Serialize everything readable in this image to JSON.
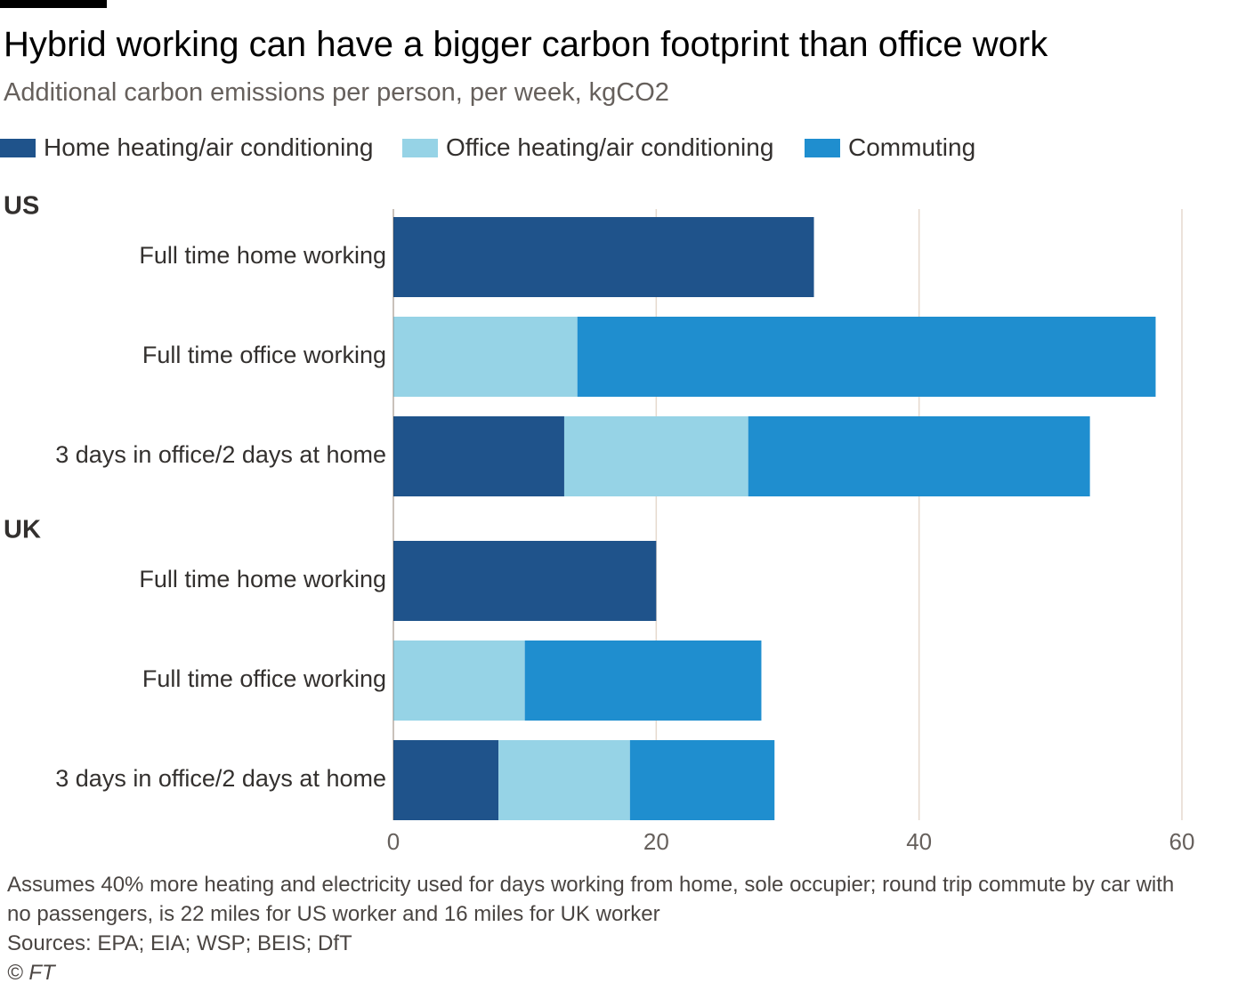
{
  "header": {
    "title": "Hybrid working can have a bigger carbon footprint than office work",
    "subtitle": "Additional carbon emissions per person, per week, kgCO2"
  },
  "legend": [
    {
      "label": "Home heating/air conditioning",
      "color": "#1f538b"
    },
    {
      "label": "Office heating/air conditioning",
      "color": "#96d3e6"
    },
    {
      "label": "Commuting",
      "color": "#1f8ecf"
    }
  ],
  "chart_data": {
    "type": "bar",
    "orientation": "horizontal",
    "stacked": true,
    "title": "Hybrid working can have a bigger carbon footprint than office work",
    "subtitle": "Additional carbon emissions per person, per week, kgCO2",
    "xlim": [
      0,
      60
    ],
    "xticks": [
      0,
      20,
      40,
      60
    ],
    "grid": true,
    "legend_position": "top",
    "groups": [
      {
        "name": "US",
        "categories": [
          "Full time home working",
          "Full time office working",
          "3 days in office/2 days at home"
        ],
        "series": [
          {
            "name": "Home heating/air conditioning",
            "values": [
              32,
              0,
              13
            ]
          },
          {
            "name": "Office heating/air conditioning",
            "values": [
              0,
              14,
              14
            ]
          },
          {
            "name": "Commuting",
            "values": [
              0,
              44,
              26
            ]
          }
        ]
      },
      {
        "name": "UK",
        "categories": [
          "Full time home working",
          "Full time office working",
          "3 days in office/2 days at home"
        ],
        "series": [
          {
            "name": "Home heating/air conditioning",
            "values": [
              20,
              0,
              8
            ]
          },
          {
            "name": "Office heating/air conditioning",
            "values": [
              0,
              10,
              10
            ]
          },
          {
            "name": "Commuting",
            "values": [
              0,
              18,
              11
            ]
          }
        ]
      }
    ]
  },
  "footer": {
    "note": "Assumes 40% more heating and electricity used for days working from home, sole occupier; round trip commute by car with no passengers, is 22 miles for US worker and 16 miles for UK worker",
    "sources": "Sources: EPA; EIA; WSP; BEIS; DfT",
    "copyright": "© FT"
  }
}
